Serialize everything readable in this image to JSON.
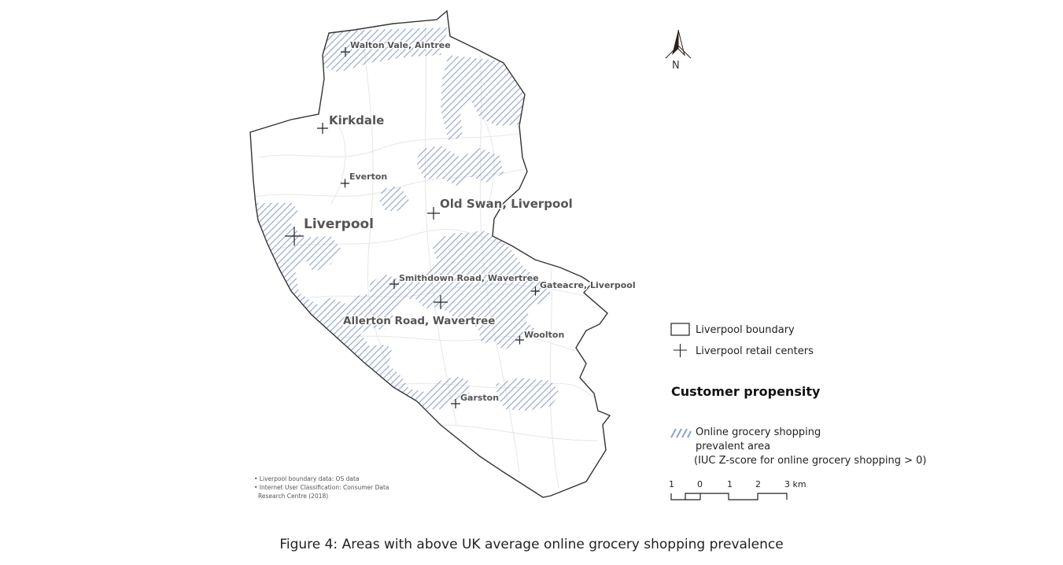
{
  "map": {
    "retail_centers": [
      {
        "name": "Walton Vale, Aintree"
      },
      {
        "name": "Kirkdale"
      },
      {
        "name": "Everton"
      },
      {
        "name": "Old Swan, Liverpool"
      },
      {
        "name": "Liverpool"
      },
      {
        "name": "Smithdown Road, Wavertree"
      },
      {
        "name": "Gateacre, Liverpool"
      },
      {
        "name": "Allerton Road, Wavertree"
      },
      {
        "name": "Woolton"
      },
      {
        "name": "Garston"
      }
    ],
    "north_label": "N",
    "hatch_color": "#8fa3c8",
    "boundary_color": "#333333"
  },
  "legend": {
    "boundary_label": "Liverpool boundary",
    "retail_label": "Liverpool retail centers",
    "section_title": "Customer propensity",
    "hatch_line1": "Online grocery shopping",
    "hatch_line2": "prevalent area",
    "hatch_line3": "(IUC Z-score for online grocery shopping > 0)"
  },
  "scale_bar": {
    "labels": [
      "1",
      "0",
      "1",
      "2",
      "3 km"
    ]
  },
  "credits": {
    "line1": "• Liverpool boundary data: OS data",
    "line2": "• Internet User Classification:  Consumer Data",
    "line3": "Research Centre (2018)"
  },
  "caption": "Figure 4:   Areas with above UK average online grocery shopping prevalence"
}
